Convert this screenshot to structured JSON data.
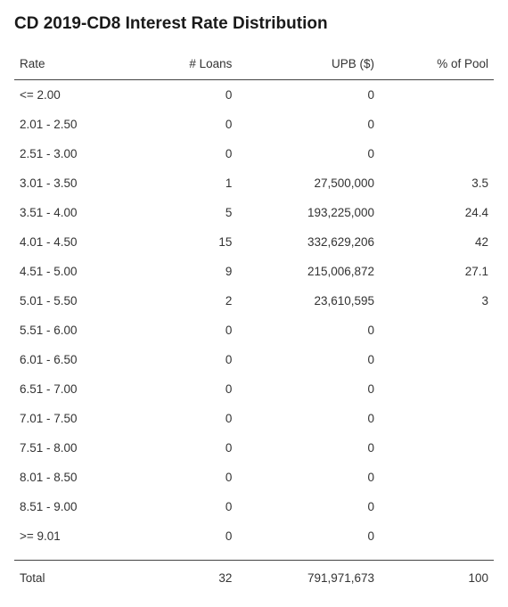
{
  "title": "CD 2019-CD8 Interest Rate Distribution",
  "columns": [
    "Rate",
    "# Loans",
    "UPB ($)",
    "% of Pool"
  ],
  "rows": [
    {
      "rate": "<= 2.00",
      "loans": "0",
      "upb": "0",
      "pct": ""
    },
    {
      "rate": "2.01 - 2.50",
      "loans": "0",
      "upb": "0",
      "pct": ""
    },
    {
      "rate": "2.51 - 3.00",
      "loans": "0",
      "upb": "0",
      "pct": ""
    },
    {
      "rate": "3.01 - 3.50",
      "loans": "1",
      "upb": "27,500,000",
      "pct": "3.5"
    },
    {
      "rate": "3.51 - 4.00",
      "loans": "5",
      "upb": "193,225,000",
      "pct": "24.4"
    },
    {
      "rate": "4.01 - 4.50",
      "loans": "15",
      "upb": "332,629,206",
      "pct": "42"
    },
    {
      "rate": "4.51 - 5.00",
      "loans": "9",
      "upb": "215,006,872",
      "pct": "27.1"
    },
    {
      "rate": "5.01 - 5.50",
      "loans": "2",
      "upb": "23,610,595",
      "pct": "3"
    },
    {
      "rate": "5.51 - 6.00",
      "loans": "0",
      "upb": "0",
      "pct": ""
    },
    {
      "rate": "6.01 - 6.50",
      "loans": "0",
      "upb": "0",
      "pct": ""
    },
    {
      "rate": "6.51 - 7.00",
      "loans": "0",
      "upb": "0",
      "pct": ""
    },
    {
      "rate": "7.01 - 7.50",
      "loans": "0",
      "upb": "0",
      "pct": ""
    },
    {
      "rate": "7.51 - 8.00",
      "loans": "0",
      "upb": "0",
      "pct": ""
    },
    {
      "rate": "8.01 - 8.50",
      "loans": "0",
      "upb": "0",
      "pct": ""
    },
    {
      "rate": "8.51 - 9.00",
      "loans": "0",
      "upb": "0",
      "pct": ""
    },
    {
      "rate": ">= 9.01",
      "loans": "0",
      "upb": "0",
      "pct": ""
    }
  ],
  "total": {
    "label": "Total",
    "loans": "32",
    "upb": "791,971,673",
    "pct": "100"
  },
  "style": {
    "background_color": "#ffffff",
    "text_color": "#333333",
    "title_color": "#1a1a1a",
    "border_color": "#444444",
    "title_fontsize": 19,
    "body_fontsize": 13.5,
    "col_align": [
      "left",
      "right",
      "right",
      "right"
    ]
  }
}
